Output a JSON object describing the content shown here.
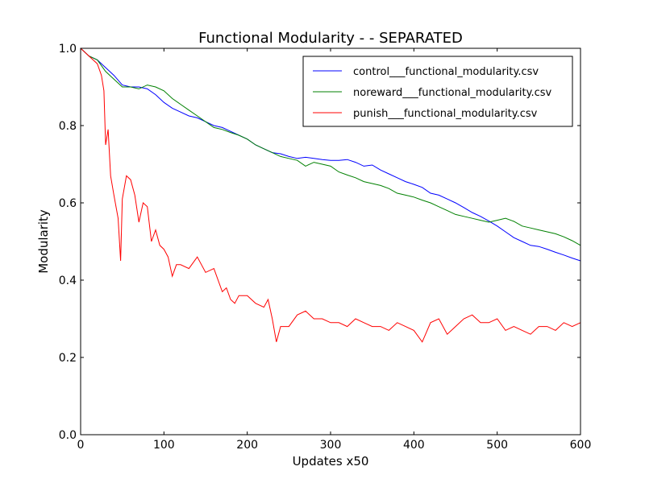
{
  "chart_data": {
    "type": "line",
    "title": "Functional Modularity -  - SEPARATED",
    "xlabel": "Updates x50",
    "ylabel": "Modularity",
    "xlim": [
      0,
      600
    ],
    "ylim": [
      0.0,
      1.0
    ],
    "xticks": [
      "0",
      "100",
      "200",
      "300",
      "400",
      "500",
      "600"
    ],
    "yticks": [
      "0.0",
      "0.2",
      "0.4",
      "0.6",
      "0.8",
      "1.0"
    ],
    "grid": false,
    "legend_position": "top-right",
    "series": [
      {
        "name": "control___functional_modularity.csv",
        "color": "#0000ff",
        "x": [
          0,
          10,
          20,
          30,
          40,
          50,
          60,
          70,
          80,
          90,
          100,
          110,
          120,
          130,
          140,
          150,
          160,
          170,
          180,
          190,
          200,
          210,
          220,
          230,
          240,
          250,
          260,
          270,
          280,
          290,
          300,
          310,
          320,
          330,
          340,
          350,
          360,
          370,
          380,
          390,
          400,
          410,
          420,
          430,
          440,
          450,
          460,
          470,
          480,
          490,
          500,
          510,
          520,
          530,
          540,
          550,
          560,
          570,
          580,
          590,
          600
        ],
        "y": [
          1.0,
          0.98,
          0.97,
          0.95,
          0.93,
          0.905,
          0.9,
          0.9,
          0.895,
          0.88,
          0.86,
          0.845,
          0.835,
          0.825,
          0.82,
          0.81,
          0.8,
          0.795,
          0.785,
          0.775,
          0.765,
          0.75,
          0.74,
          0.73,
          0.727,
          0.72,
          0.715,
          0.718,
          0.715,
          0.712,
          0.71,
          0.71,
          0.712,
          0.705,
          0.695,
          0.698,
          0.685,
          0.675,
          0.665,
          0.655,
          0.648,
          0.64,
          0.625,
          0.62,
          0.61,
          0.6,
          0.588,
          0.575,
          0.565,
          0.553,
          0.54,
          0.525,
          0.51,
          0.5,
          0.49,
          0.487,
          0.48,
          0.472,
          0.465,
          0.457,
          0.45
        ]
      },
      {
        "name": "noreward___functional_modularity.csv",
        "color": "#008000",
        "x": [
          0,
          10,
          20,
          30,
          40,
          50,
          60,
          70,
          80,
          90,
          100,
          110,
          120,
          130,
          140,
          150,
          160,
          170,
          180,
          190,
          200,
          210,
          220,
          230,
          240,
          250,
          260,
          270,
          280,
          290,
          300,
          310,
          320,
          330,
          340,
          350,
          360,
          370,
          380,
          390,
          400,
          410,
          420,
          430,
          440,
          450,
          460,
          470,
          480,
          490,
          500,
          510,
          520,
          530,
          540,
          550,
          560,
          570,
          580,
          590,
          600
        ],
        "y": [
          1.0,
          0.98,
          0.97,
          0.94,
          0.92,
          0.9,
          0.9,
          0.895,
          0.905,
          0.9,
          0.89,
          0.87,
          0.855,
          0.84,
          0.825,
          0.81,
          0.795,
          0.79,
          0.782,
          0.775,
          0.765,
          0.75,
          0.74,
          0.73,
          0.72,
          0.715,
          0.71,
          0.695,
          0.705,
          0.7,
          0.695,
          0.68,
          0.672,
          0.665,
          0.655,
          0.65,
          0.645,
          0.637,
          0.625,
          0.62,
          0.615,
          0.607,
          0.6,
          0.59,
          0.58,
          0.57,
          0.565,
          0.56,
          0.555,
          0.55,
          0.555,
          0.56,
          0.552,
          0.54,
          0.535,
          0.53,
          0.525,
          0.52,
          0.512,
          0.502,
          0.49
        ]
      },
      {
        "name": "punish___functional_modularity.csv",
        "color": "#ff0000",
        "x": [
          0,
          10,
          20,
          25,
          28,
          30,
          33,
          36,
          40,
          45,
          48,
          50,
          55,
          60,
          65,
          70,
          75,
          80,
          85,
          90,
          95,
          100,
          105,
          110,
          115,
          120,
          130,
          140,
          150,
          160,
          170,
          175,
          180,
          185,
          190,
          200,
          210,
          220,
          225,
          230,
          235,
          240,
          250,
          260,
          270,
          280,
          290,
          300,
          310,
          320,
          330,
          340,
          350,
          360,
          370,
          380,
          390,
          400,
          410,
          420,
          430,
          440,
          450,
          460,
          470,
          480,
          490,
          500,
          510,
          520,
          530,
          540,
          550,
          560,
          570,
          580,
          590,
          600
        ],
        "y": [
          1.0,
          0.98,
          0.96,
          0.93,
          0.89,
          0.75,
          0.79,
          0.67,
          0.62,
          0.56,
          0.45,
          0.61,
          0.67,
          0.66,
          0.62,
          0.55,
          0.6,
          0.59,
          0.5,
          0.53,
          0.49,
          0.48,
          0.46,
          0.41,
          0.44,
          0.44,
          0.43,
          0.46,
          0.42,
          0.43,
          0.37,
          0.38,
          0.35,
          0.34,
          0.36,
          0.36,
          0.34,
          0.33,
          0.35,
          0.3,
          0.24,
          0.28,
          0.28,
          0.31,
          0.32,
          0.3,
          0.3,
          0.29,
          0.29,
          0.28,
          0.3,
          0.29,
          0.28,
          0.28,
          0.27,
          0.29,
          0.28,
          0.27,
          0.24,
          0.29,
          0.3,
          0.26,
          0.28,
          0.3,
          0.31,
          0.29,
          0.29,
          0.3,
          0.27,
          0.28,
          0.27,
          0.26,
          0.28,
          0.28,
          0.27,
          0.29,
          0.28,
          0.29
        ]
      }
    ]
  }
}
